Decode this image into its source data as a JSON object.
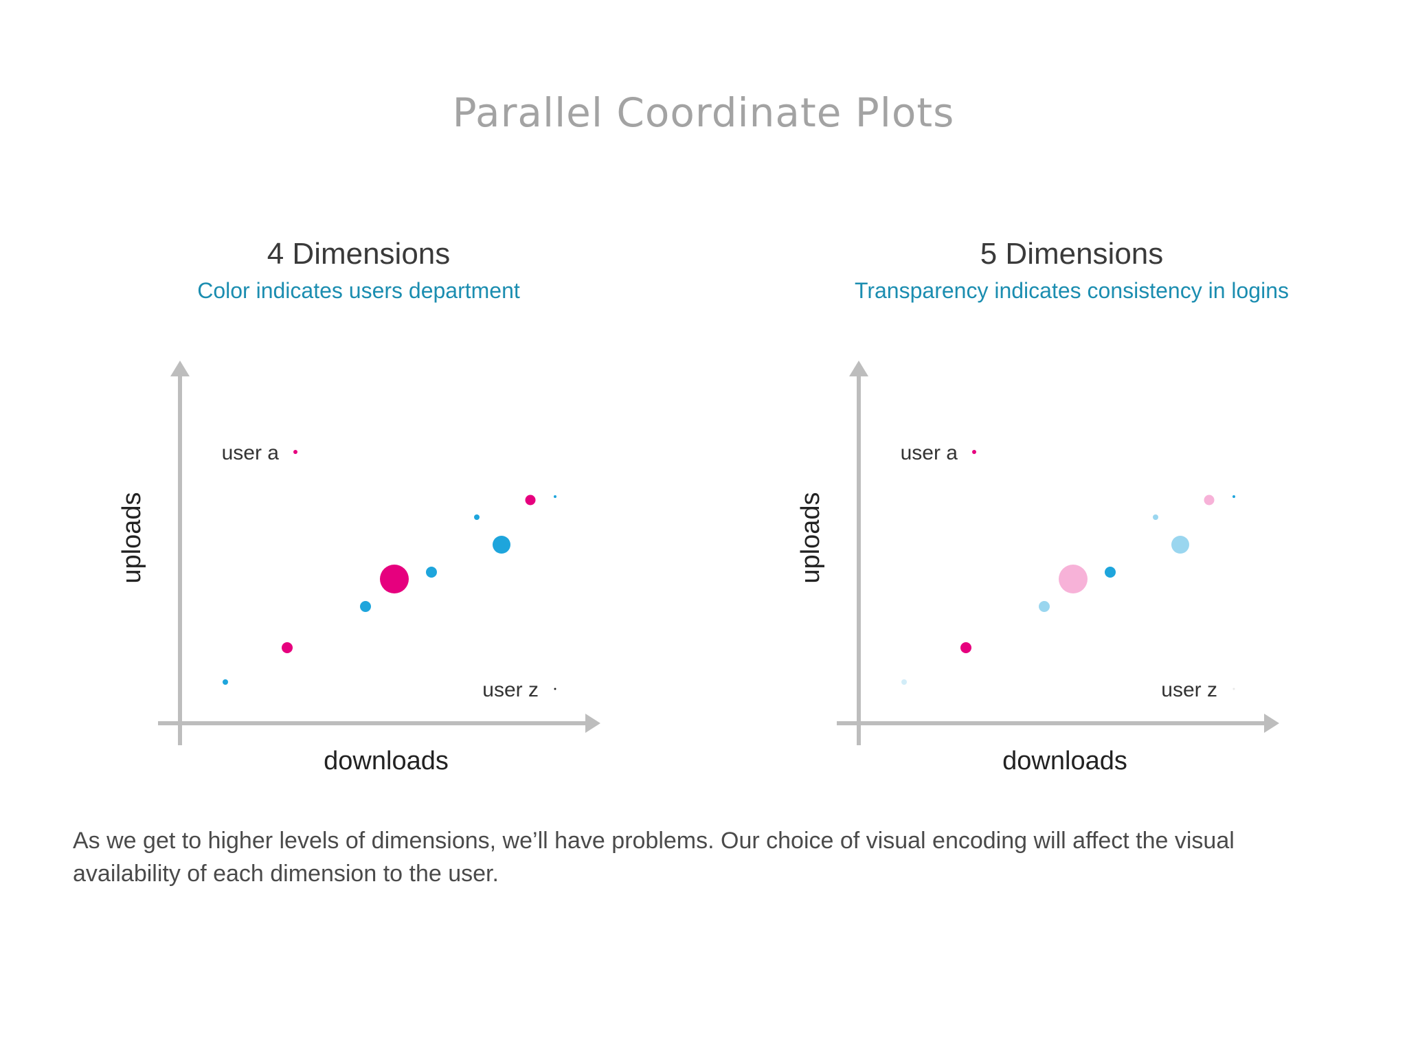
{
  "slide": {
    "title": "Parallel Coordinate Plots",
    "caption": "As we get to higher levels of dimensions, we’ll have problems. Our choice of visual encoding will affect the visual availability of each dimension to the user."
  },
  "colors": {
    "magenta": "#e6007e",
    "blue": "#1ea5dc",
    "axis": "#bdbdbd",
    "subtitle": "#1b8db0"
  },
  "chart_data": [
    {
      "type": "scatter",
      "title": "4 Dimensions",
      "subtitle": "Color indicates users department",
      "xlabel": "downloads",
      "ylabel": "uploads",
      "xlim": [
        0,
        100
      ],
      "ylim": [
        0,
        100
      ],
      "grid": false,
      "size_encoding": true,
      "color_encoding": "department",
      "points": [
        {
          "x": 28,
          "y": 79,
          "size": 6,
          "color": "magenta",
          "opacity": 1,
          "label": "user a"
        },
        {
          "x": 85,
          "y": 65,
          "size": 15,
          "color": "magenta",
          "opacity": 1
        },
        {
          "x": 91,
          "y": 66,
          "size": 4,
          "color": "blue",
          "opacity": 1
        },
        {
          "x": 72,
          "y": 60,
          "size": 8,
          "color": "blue",
          "opacity": 1
        },
        {
          "x": 78,
          "y": 52,
          "size": 26,
          "color": "blue",
          "opacity": 1
        },
        {
          "x": 52,
          "y": 42,
          "size": 42,
          "color": "magenta",
          "opacity": 1
        },
        {
          "x": 61,
          "y": 44,
          "size": 16,
          "color": "blue",
          "opacity": 1
        },
        {
          "x": 45,
          "y": 34,
          "size": 16,
          "color": "blue",
          "opacity": 1
        },
        {
          "x": 26,
          "y": 22,
          "size": 16,
          "color": "magenta",
          "opacity": 1
        },
        {
          "x": 11,
          "y": 12,
          "size": 8,
          "color": "blue",
          "opacity": 1
        },
        {
          "x": 91,
          "y": 10,
          "size": 3,
          "color": "black",
          "opacity": 1,
          "label": "user z"
        }
      ]
    },
    {
      "type": "scatter",
      "title": "5 Dimensions",
      "subtitle": "Transparency indicates consistency in logins",
      "xlabel": "downloads",
      "ylabel": "uploads",
      "xlim": [
        0,
        100
      ],
      "ylim": [
        0,
        100
      ],
      "grid": false,
      "size_encoding": true,
      "color_encoding": "department",
      "opacity_encoding": "consistency in logins",
      "points": [
        {
          "x": 28,
          "y": 79,
          "size": 6,
          "color": "magenta",
          "opacity": 1,
          "label": "user a"
        },
        {
          "x": 85,
          "y": 65,
          "size": 15,
          "color": "magenta",
          "opacity": 0.3
        },
        {
          "x": 91,
          "y": 66,
          "size": 4,
          "color": "blue",
          "opacity": 1
        },
        {
          "x": 72,
          "y": 60,
          "size": 8,
          "color": "blue",
          "opacity": 0.45
        },
        {
          "x": 78,
          "y": 52,
          "size": 26,
          "color": "blue",
          "opacity": 0.45
        },
        {
          "x": 52,
          "y": 42,
          "size": 42,
          "color": "magenta",
          "opacity": 0.3
        },
        {
          "x": 61,
          "y": 44,
          "size": 16,
          "color": "blue",
          "opacity": 1
        },
        {
          "x": 45,
          "y": 34,
          "size": 16,
          "color": "blue",
          "opacity": 0.45
        },
        {
          "x": 26,
          "y": 22,
          "size": 16,
          "color": "magenta",
          "opacity": 1
        },
        {
          "x": 11,
          "y": 12,
          "size": 8,
          "color": "blue",
          "opacity": 0.2
        },
        {
          "x": 91,
          "y": 10,
          "size": 3,
          "color": "black",
          "opacity": 0.1,
          "label": "user z"
        }
      ]
    }
  ]
}
